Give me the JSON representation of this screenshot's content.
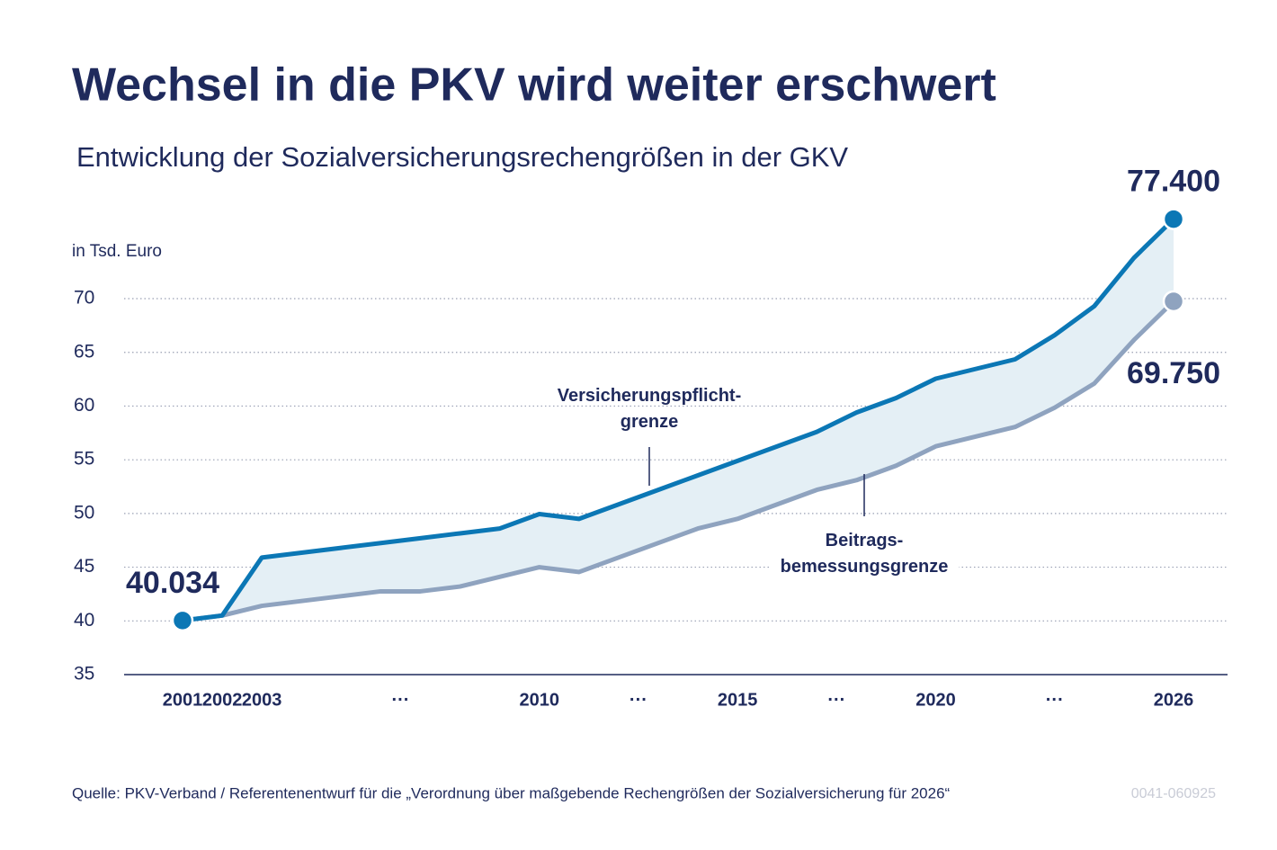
{
  "chart_data": {
    "type": "line",
    "title": "Wechsel in die PKV wird weiter erschwert",
    "subtitle": "Entwicklung der Sozialversicherungsrechengrößen in der GKV",
    "y_label": "in Tsd. Euro",
    "x": [
      2001,
      2002,
      2003,
      2004,
      2005,
      2006,
      2007,
      2008,
      2009,
      2010,
      2011,
      2012,
      2013,
      2014,
      2015,
      2016,
      2017,
      2018,
      2019,
      2020,
      2021,
      2022,
      2023,
      2024,
      2025,
      2026
    ],
    "xlim": [
      2001,
      2026
    ],
    "xticks": [
      2001,
      2002,
      2003,
      2010,
      2015,
      2020,
      2026
    ],
    "x_gap_label": "···",
    "ylim": [
      35,
      78
    ],
    "yticks": [
      35,
      40,
      45,
      50,
      55,
      60,
      65,
      70
    ],
    "grid": true,
    "band_color": "#e4eff5",
    "series": [
      {
        "name": "Versicherungspflicht-\ngrenze",
        "color": "#0b77b5",
        "values": [
          40.034,
          40.5,
          45.9,
          46.35,
          46.8,
          47.25,
          47.7,
          48.15,
          48.6,
          49.95,
          49.5,
          50.85,
          52.2,
          53.55,
          54.9,
          56.25,
          57.6,
          59.4,
          60.75,
          62.55,
          63.45,
          64.35,
          66.6,
          69.3,
          73.8,
          77.4
        ],
        "value_labels": [
          "40.034",
          null,
          null,
          null,
          null,
          null,
          null,
          null,
          null,
          null,
          null,
          null,
          null,
          null,
          null,
          null,
          null,
          null,
          null,
          null,
          null,
          null,
          null,
          null,
          null,
          "77.400"
        ]
      },
      {
        "name": "Beitrags-\nbemessungsgrenze",
        "color": "#8fa3bf",
        "values": [
          40.034,
          40.5,
          41.4,
          41.85,
          42.3,
          42.75,
          42.75,
          43.2,
          44.1,
          45.0,
          44.55,
          45.9,
          47.25,
          48.6,
          49.5,
          50.85,
          52.2,
          53.1,
          54.45,
          56.25,
          57.15,
          58.05,
          59.85,
          62.1,
          66.15,
          69.75
        ],
        "value_labels": [
          null,
          null,
          null,
          null,
          null,
          null,
          null,
          null,
          null,
          null,
          null,
          null,
          null,
          null,
          null,
          null,
          null,
          null,
          null,
          null,
          null,
          null,
          null,
          null,
          null,
          "69.750"
        ]
      }
    ],
    "source": "Quelle: PKV-Verband / Referentenentwurf für die „Verordnung über maßgebende Rechengrößen der Sozialversicherung für 2026“",
    "code": "0041-060925"
  }
}
